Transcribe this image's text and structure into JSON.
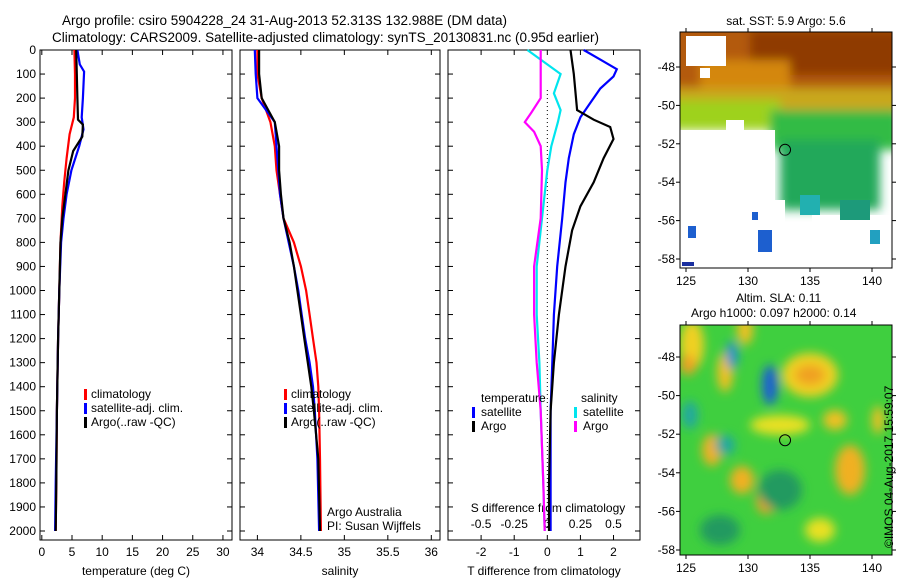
{
  "chart_data": {
    "title": "Argo profile: csiro 5904228_24 31-Aug-2013 52.313S 132.988E (DM data)",
    "subtitle": "Climatology: CARS2009. Satellite-adjusted climatology: synTS_20130831.nc (0.95d earlier)",
    "depth_ticks": [
      0,
      100,
      200,
      300,
      400,
      500,
      600,
      700,
      800,
      900,
      1000,
      1100,
      1200,
      1300,
      1400,
      1500,
      1600,
      1700,
      1800,
      1900,
      2000
    ],
    "depth_range": [
      0,
      2080
    ],
    "colors": {
      "climatology": "#ff0000",
      "satellite": "#0000ff",
      "argo": "#000000",
      "sal_satellite": "#00e5ee",
      "sal_argo": "#ff00ff"
    },
    "panels": [
      {
        "type": "line",
        "xlabel": "temperature (deg C)",
        "xlim": [
          -0.3,
          31.5
        ],
        "xticks": [
          0,
          5,
          10,
          15,
          20,
          25,
          30
        ],
        "legend": [
          "climatology",
          "satellite-adj. clim.",
          "Argo(..raw -QC)"
        ],
        "series": [
          {
            "name": "climatology",
            "color": "#ff0000",
            "depth": [
              0,
              100,
              200,
              280,
              350,
              450,
              550,
              650,
              800,
              1000,
              1200,
              1500,
              1800,
              2000
            ],
            "values": [
              5.4,
              5.5,
              5.5,
              5.3,
              4.6,
              4.1,
              3.7,
              3.4,
              3.1,
              2.9,
              2.7,
              2.5,
              2.4,
              2.3
            ]
          },
          {
            "name": "satellite-adj. clim.",
            "color": "#0000ff",
            "depth": [
              0,
              60,
              90,
              200,
              280,
              330,
              400,
              500,
              600,
              700,
              800,
              1000,
              1200,
              1500,
              1800,
              2000
            ],
            "values": [
              5.9,
              6.3,
              7.0,
              6.8,
              6.6,
              6.9,
              6.2,
              4.9,
              4.1,
              3.6,
              3.2,
              2.9,
              2.7,
              2.5,
              2.3,
              2.2
            ]
          },
          {
            "name": "Argo(..raw -QC)",
            "color": "#000000",
            "depth": [
              0,
              100,
              200,
              290,
              310,
              360,
              420,
              500,
              600,
              700,
              800,
              1000,
              1200,
              1500,
              1800,
              2000
            ],
            "values": [
              5.7,
              5.8,
              5.9,
              6.0,
              6.8,
              6.7,
              5.2,
              4.4,
              3.9,
              3.4,
              3.1,
              2.9,
              2.7,
              2.5,
              2.4,
              2.3
            ]
          }
        ]
      },
      {
        "type": "line",
        "xlabel": "salinity",
        "xlim": [
          33.8,
          36.1
        ],
        "xticks": [
          34,
          34.5,
          35,
          35.5,
          36
        ],
        "xticklabels": [
          "34",
          "34.5",
          "35",
          "35.5",
          "36"
        ],
        "legend": [
          "climatology",
          "satellite-adj. clim.",
          "Argo(..raw -QC)"
        ],
        "annotation": [
          "Argo Australia",
          "PI: Susan Wijffels"
        ],
        "series": [
          {
            "name": "climatology",
            "color": "#ff0000",
            "depth": [
              0,
              100,
              200,
              300,
              400,
              500,
              600,
              700,
              800,
              900,
              1000,
              1100,
              1200,
              1300,
              1400,
              1500,
              1700,
              2000
            ],
            "values": [
              34.0,
              34.0,
              34.05,
              34.15,
              34.2,
              34.22,
              34.26,
              34.3,
              34.42,
              34.5,
              34.56,
              34.6,
              34.64,
              34.68,
              34.7,
              34.71,
              34.72,
              34.73
            ]
          },
          {
            "name": "satellite-adj. clim.",
            "color": "#0000ff",
            "depth": [
              0,
              100,
              200,
              300,
              400,
              500,
              600,
              700,
              800,
              900,
              1000,
              1100,
              1200,
              1300,
              1400,
              1500,
              1700,
              2000
            ],
            "values": [
              33.97,
              33.98,
              34.0,
              34.2,
              34.22,
              34.24,
              34.26,
              34.3,
              34.36,
              34.42,
              34.47,
              34.51,
              34.55,
              34.6,
              34.64,
              34.66,
              34.69,
              34.71
            ]
          },
          {
            "name": "Argo(..raw -QC)",
            "color": "#000000",
            "depth": [
              0,
              100,
              200,
              300,
              400,
              500,
              600,
              700,
              800,
              900,
              1000,
              1100,
              1200,
              1300,
              1400,
              1500,
              1700,
              2000
            ],
            "values": [
              34.02,
              34.02,
              34.05,
              34.2,
              34.25,
              34.25,
              34.27,
              34.3,
              34.37,
              34.42,
              34.46,
              34.5,
              34.54,
              34.58,
              34.62,
              34.65,
              34.7,
              34.72
            ]
          }
        ]
      },
      {
        "type": "line",
        "xlabel": "T difference from climatology",
        "xlabel2": "S difference from climatology",
        "xlim": [
          -3.0,
          2.8
        ],
        "xticks": [
          -2,
          -1,
          0,
          1,
          2
        ],
        "s_xticks": [
          -0.5,
          -0.25,
          0,
          0.25,
          0.5
        ],
        "s_xticklabels": [
          "-0.5",
          "-0.25",
          "0",
          "0.25",
          "0.5"
        ],
        "legend_temperature": {
          "title": "temperature",
          "items": [
            "satellite",
            "Argo"
          ]
        },
        "legend_salinity": {
          "title": "salinity",
          "items": [
            "satellite",
            "Argo"
          ]
        },
        "series": [
          {
            "name": "temperature satellite",
            "color": "#0000ff",
            "scale": "T",
            "depth": [
              0,
              40,
              80,
              110,
              160,
              220,
              280,
              350,
              450,
              550,
              700,
              900,
              1100,
              1300,
              1500,
              1800,
              2000
            ],
            "values": [
              1.1,
              1.6,
              2.1,
              2.0,
              1.6,
              1.3,
              1.0,
              0.8,
              0.65,
              0.55,
              0.45,
              0.3,
              0.2,
              0.15,
              0.1,
              0.1,
              0.1
            ]
          },
          {
            "name": "temperature Argo",
            "color": "#000000",
            "scale": "T",
            "depth": [
              0,
              100,
              250,
              290,
              320,
              370,
              450,
              550,
              650,
              750,
              900,
              1100,
              1300,
              1500,
              1800,
              2000
            ],
            "values": [
              0.7,
              0.8,
              0.9,
              1.4,
              1.9,
              2.0,
              1.7,
              1.4,
              1.0,
              0.75,
              0.55,
              0.35,
              0.2,
              0.1,
              0.05,
              0.05
            ]
          },
          {
            "name": "salinity satellite",
            "color": "#00e5ee",
            "scale": "S",
            "depth": [
              0,
              40,
              100,
              180,
              250,
              300,
              400,
              500,
              700,
              900,
              1100,
              1300,
              1500,
              1800,
              2000
            ],
            "values": [
              -0.15,
              -0.05,
              0.1,
              0.05,
              0.1,
              0.08,
              0.03,
              0.0,
              -0.04,
              -0.08,
              -0.08,
              -0.06,
              -0.05,
              -0.03,
              -0.02
            ]
          },
          {
            "name": "salinity Argo",
            "color": "#ff00ff",
            "scale": "S",
            "depth": [
              0,
              100,
              200,
              260,
              300,
              340,
              400,
              500,
              700,
              900,
              1100,
              1300,
              1500,
              1800,
              2000
            ],
            "values": [
              -0.05,
              -0.05,
              -0.05,
              -0.12,
              -0.17,
              -0.1,
              -0.05,
              -0.04,
              -0.05,
              -0.1,
              -0.1,
              -0.08,
              -0.05,
              -0.03,
              -0.02
            ]
          }
        ]
      }
    ],
    "maps": [
      {
        "type": "heatmap",
        "title": "sat. SST: 5.9 Argo: 5.6",
        "lon_ticks": [
          125,
          130,
          135,
          140
        ],
        "lat_ticks": [
          -48,
          -50,
          -52,
          -54,
          -56,
          -58
        ],
        "lon_range": [
          124.5,
          141.3
        ],
        "lat_range": [
          -58.4,
          -46.2
        ],
        "marker": {
          "lon": 132.988,
          "lat": -52.313
        }
      },
      {
        "type": "heatmap",
        "title": "Altim. SLA: 0.11",
        "subtitle": "Argo h1000: 0.097 h2000: 0.14",
        "lon_ticks": [
          125,
          130,
          135,
          140
        ],
        "lat_ticks": [
          -48,
          -50,
          -52,
          -54,
          -56,
          -58
        ],
        "lon_range": [
          124.5,
          141.3
        ],
        "lat_range": [
          -58.4,
          -46.2
        ],
        "marker": {
          "lon": 132.988,
          "lat": -52.313
        }
      }
    ],
    "credit": "©IMOS 04-Aug-2017 15:59:07"
  }
}
